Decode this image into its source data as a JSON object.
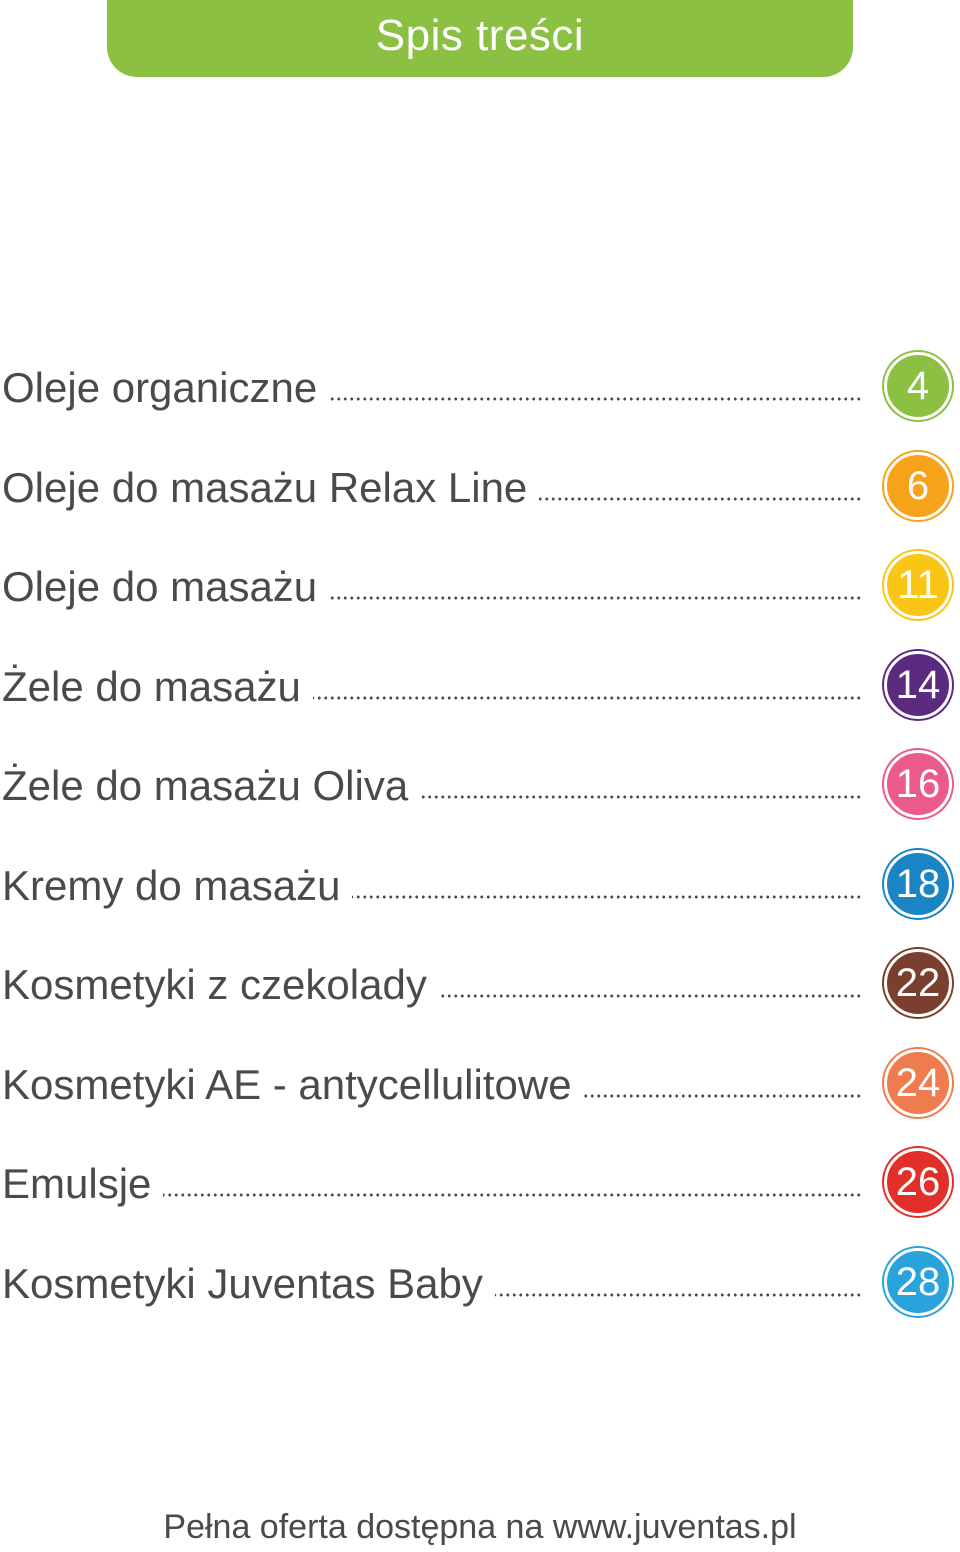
{
  "header": {
    "title": "Spis treści",
    "color": "#8cc043"
  },
  "toc": [
    {
      "title": "Oleje organiczne",
      "page": "4",
      "color": "#8cc043"
    },
    {
      "title": "Oleje do masażu Relax Line",
      "page": "6",
      "color": "#f7a21b"
    },
    {
      "title": "Oleje do masażu",
      "page": "11",
      "color": "#f9c616"
    },
    {
      "title": "Żele do masażu",
      "page": "14",
      "color": "#5b2b82"
    },
    {
      "title": "Żele do masażu Oliva",
      "page": "16",
      "color": "#ea5b8c"
    },
    {
      "title": "Kremy do masażu",
      "page": "18",
      "color": "#1a84c4"
    },
    {
      "title": "Kosmetyki z czekolady",
      "page": "22",
      "color": "#7b3f2f"
    },
    {
      "title": "Kosmetyki AE - antycellulitowe",
      "page": "24",
      "color": "#ef7c4f"
    },
    {
      "title": "Emulsje",
      "page": "26",
      "color": "#e32f29"
    },
    {
      "title": "Kosmetyki Juventas Baby",
      "page": "28",
      "color": "#2aa3dd"
    }
  ],
  "footer": {
    "text": "Pełna oferta dostępna na www.juventas.pl"
  }
}
